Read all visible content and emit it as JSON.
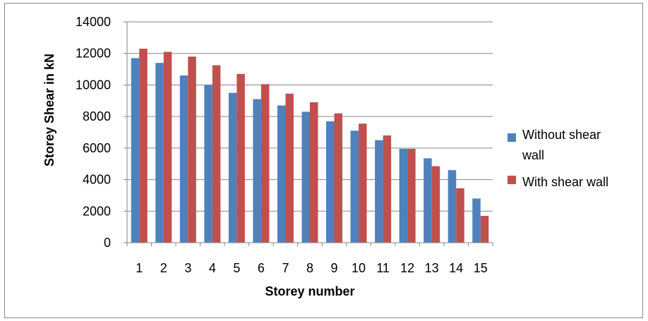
{
  "chart_data": {
    "type": "bar",
    "title": "",
    "xlabel": "Storey number",
    "ylabel": "Storey Shear in kN",
    "categories": [
      "1",
      "2",
      "3",
      "4",
      "5",
      "6",
      "7",
      "8",
      "9",
      "10",
      "11",
      "12",
      "13",
      "14",
      "15"
    ],
    "series": [
      {
        "name": "Without shear wall",
        "legend_lines": [
          "Without shear",
          "wall"
        ],
        "color": "#4F81BD",
        "values": [
          11700,
          11400,
          10600,
          10000,
          9500,
          9100,
          8700,
          8300,
          7700,
          7100,
          6500,
          5950,
          5350,
          4600,
          2800
        ]
      },
      {
        "name": "With shear wall",
        "legend_lines": [
          "With shear wall"
        ],
        "color": "#C0504D",
        "values": [
          12300,
          12100,
          11800,
          11250,
          10700,
          10050,
          9450,
          8900,
          8200,
          7550,
          6800,
          5950,
          4850,
          3450,
          1700
        ]
      }
    ],
    "ylim": [
      0,
      14000
    ],
    "yticks": [
      0,
      2000,
      4000,
      6000,
      8000,
      10000,
      12000,
      14000
    ],
    "grid": true,
    "legend_position": "right"
  }
}
